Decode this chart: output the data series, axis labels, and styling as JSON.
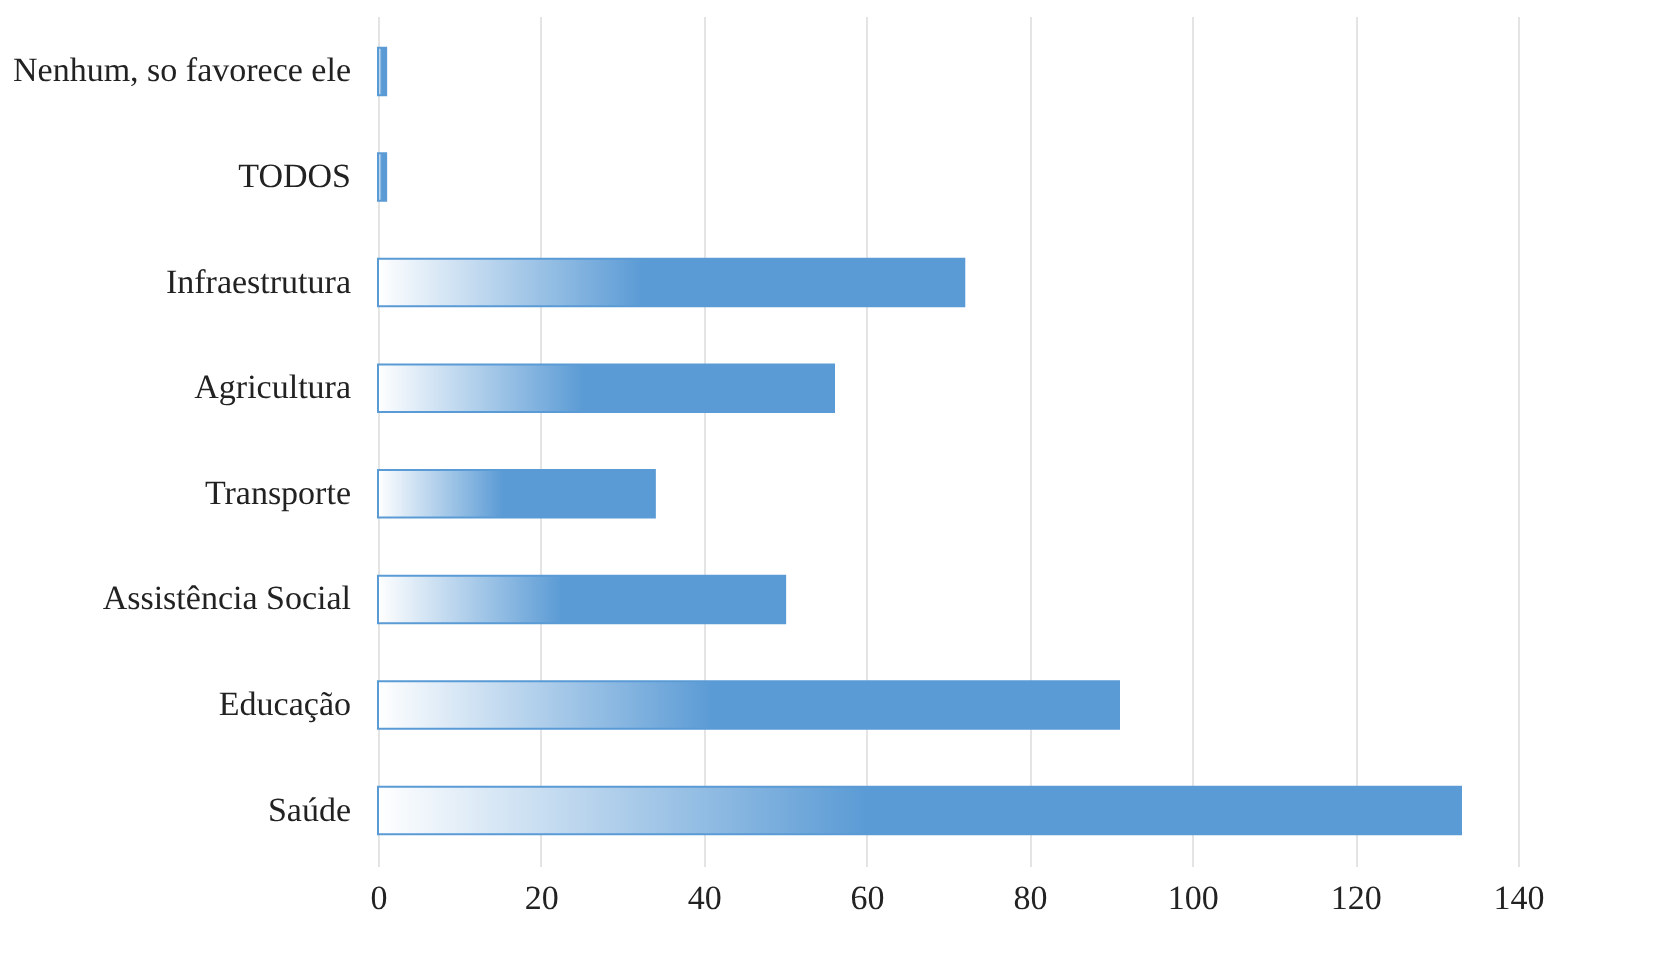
{
  "chart_data": {
    "type": "bar",
    "orientation": "horizontal",
    "categories": [
      "Nenhum, so favorece ele",
      "TODOS",
      "Infraestrutura",
      "Agricultura",
      "Transporte",
      "Assistência Social",
      "Educação",
      "Saúde"
    ],
    "values": [
      1,
      1,
      72,
      56,
      34,
      50,
      91,
      133
    ],
    "color": "#5b9bd5",
    "xlim": [
      0,
      140
    ],
    "xticks": [
      0,
      20,
      40,
      60,
      80,
      100,
      120,
      140
    ],
    "grid": "x"
  }
}
